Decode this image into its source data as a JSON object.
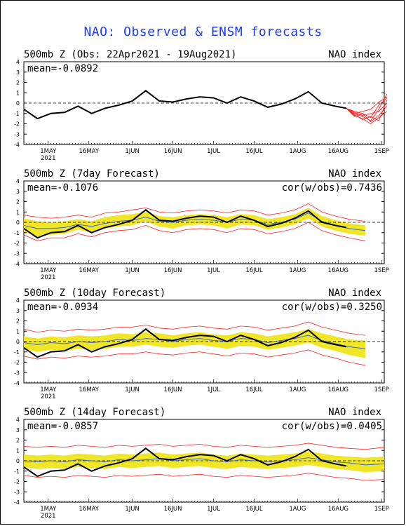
{
  "title": "NAO: Observed & ENSM forecasts",
  "colors": {
    "title": "#1e3cff",
    "observed": "#000000",
    "ensemble_mean": "#3c64c8",
    "spread": "#f0e628",
    "members": "#ff2020"
  },
  "chart_data": [
    {
      "type": "line",
      "header_left": "500mb Z (Obs: 22Apr2021 - 19Aug2021)",
      "header_right": "NAO index",
      "stat_left": "mean=-0.0892",
      "stat_right": "",
      "ylim": [
        -4,
        4
      ],
      "yticks": [
        4,
        3,
        2,
        1,
        0,
        -1,
        -2,
        -3,
        -4
      ],
      "x_ticks": [
        "1MAY",
        "16MAY",
        "1JUN",
        "16JUN",
        "1JUL",
        "16JUL",
        "1AUG",
        "16AUG",
        "1SEP"
      ],
      "year_label": "2021",
      "x_days": {
        "start": "2021-04-22",
        "end": "2021-09-02"
      },
      "series": [
        {
          "role": "observed",
          "x": [
            0,
            5,
            10,
            15,
            20,
            25,
            30,
            35,
            40,
            45,
            50,
            55,
            60,
            65,
            70,
            75,
            80,
            85,
            90,
            95,
            100,
            105,
            110,
            115,
            119
          ],
          "values": [
            -0.6,
            -1.5,
            -1.0,
            -0.9,
            -0.3,
            -1.0,
            -0.5,
            -0.2,
            0.2,
            1.2,
            0.2,
            0.1,
            0.4,
            0.6,
            0.5,
            0.0,
            0.6,
            0.2,
            -0.4,
            -0.1,
            0.4,
            1.1,
            0.0,
            -0.3,
            -0.5
          ]
        },
        {
          "role": "members",
          "x": [
            119,
            122,
            125,
            128,
            131,
            134
          ],
          "members": [
            [
              -0.5,
              -1.0,
              -1.3,
              -1.7,
              -0.6,
              0.9
            ],
            [
              -0.5,
              -0.9,
              -1.2,
              -1.0,
              -0.8,
              0.0
            ],
            [
              -0.5,
              -1.2,
              -1.5,
              -2.0,
              -1.4,
              -0.8
            ],
            [
              -0.5,
              -1.0,
              -0.8,
              -0.6,
              0.1,
              0.6
            ],
            [
              -0.5,
              -1.1,
              -1.6,
              -1.3,
              -1.7,
              0.3
            ],
            [
              -0.5,
              -0.8,
              -1.0,
              -1.4,
              -0.2,
              0.5
            ],
            [
              -0.5,
              -1.3,
              -1.0,
              -1.8,
              -1.2,
              -0.3
            ]
          ]
        }
      ]
    },
    {
      "type": "line",
      "header_left": "500mb Z (7day Forecast)",
      "header_right": "NAO index",
      "stat_left": "mean=-0.1076",
      "stat_right": "cor(w/obs)=0.7436",
      "ylim": [
        -4,
        4
      ],
      "yticks": [
        4,
        3,
        2,
        1,
        0,
        -1,
        -2,
        -3,
        -4
      ],
      "x_ticks": [
        "1MAY",
        "16MAY",
        "1JUN",
        "16JUN",
        "1JUL",
        "16JUL",
        "1AUG",
        "16AUG",
        "1SEP"
      ],
      "year_label": "2021",
      "x_days": {
        "start": "2021-04-22",
        "end": "2021-09-02"
      },
      "series": [
        {
          "role": "spread",
          "x": [
            0,
            5,
            10,
            15,
            20,
            25,
            30,
            35,
            40,
            45,
            50,
            55,
            60,
            65,
            70,
            75,
            80,
            85,
            90,
            95,
            100,
            105,
            110,
            115,
            120,
            126
          ],
          "upper": [
            0.4,
            0.1,
            0.0,
            0.1,
            0.3,
            0.1,
            0.5,
            0.7,
            0.8,
            1.0,
            0.6,
            0.5,
            0.7,
            0.8,
            0.7,
            0.5,
            0.8,
            0.7,
            0.3,
            0.5,
            0.8,
            1.4,
            0.6,
            0.2,
            -0.1,
            -0.3
          ],
          "lower": [
            -0.9,
            -1.4,
            -1.2,
            -1.1,
            -0.7,
            -1.0,
            -0.6,
            -0.4,
            -0.3,
            0.1,
            -0.4,
            -0.6,
            -0.3,
            -0.2,
            -0.3,
            -0.6,
            -0.2,
            -0.3,
            -0.7,
            -0.5,
            -0.2,
            0.4,
            -0.4,
            -0.8,
            -1.1,
            -1.3
          ]
        },
        {
          "role": "members_envelope",
          "x": [
            0,
            5,
            10,
            15,
            20,
            25,
            30,
            35,
            40,
            45,
            50,
            55,
            60,
            65,
            70,
            75,
            80,
            85,
            90,
            95,
            100,
            105,
            110,
            115,
            120,
            126
          ],
          "upper": [
            0.7,
            0.5,
            0.4,
            0.5,
            0.7,
            0.5,
            0.9,
            1.0,
            1.2,
            1.4,
            1.0,
            0.9,
            1.1,
            1.2,
            1.1,
            0.9,
            1.2,
            1.1,
            0.7,
            0.9,
            1.2,
            1.8,
            1.0,
            0.6,
            0.3,
            0.1
          ],
          "lower": [
            -1.2,
            -1.8,
            -1.5,
            -1.5,
            -1.1,
            -1.4,
            -1.0,
            -0.8,
            -0.7,
            -0.3,
            -0.8,
            -1.0,
            -0.7,
            -0.6,
            -0.7,
            -1.0,
            -0.6,
            -0.7,
            -1.1,
            -0.9,
            -0.6,
            0.0,
            -0.8,
            -1.2,
            -1.5,
            -1.8
          ]
        },
        {
          "role": "ensemble_mean",
          "x": [
            0,
            5,
            10,
            15,
            20,
            25,
            30,
            35,
            40,
            45,
            50,
            55,
            60,
            65,
            70,
            75,
            80,
            85,
            90,
            95,
            100,
            105,
            110,
            115,
            120,
            126
          ],
          "values": [
            -0.3,
            -0.6,
            -0.6,
            -0.5,
            -0.2,
            -0.4,
            -0.1,
            0.1,
            0.2,
            0.5,
            0.1,
            0.0,
            0.2,
            0.3,
            0.2,
            0.0,
            0.3,
            0.2,
            -0.2,
            0.0,
            0.3,
            0.9,
            0.1,
            -0.3,
            -0.6,
            -0.8
          ]
        },
        {
          "role": "observed",
          "x": [
            0,
            5,
            10,
            15,
            20,
            25,
            30,
            35,
            40,
            45,
            50,
            55,
            60,
            65,
            70,
            75,
            80,
            85,
            90,
            95,
            100,
            105,
            110,
            115,
            119
          ],
          "values": [
            -0.6,
            -1.5,
            -1.0,
            -0.9,
            -0.3,
            -1.0,
            -0.5,
            -0.2,
            0.2,
            1.2,
            0.2,
            0.1,
            0.4,
            0.6,
            0.5,
            0.0,
            0.6,
            0.2,
            -0.4,
            -0.1,
            0.4,
            1.1,
            0.0,
            -0.3,
            -0.5
          ]
        }
      ]
    },
    {
      "type": "line",
      "header_left": "500mb Z (10day Forecast)",
      "header_right": "NAO index",
      "stat_left": "mean=-0.0934",
      "stat_right": "cor(w/obs)=0.3250",
      "ylim": [
        -4,
        4
      ],
      "yticks": [
        4,
        3,
        2,
        1,
        0,
        -1,
        -2,
        -3,
        -4
      ],
      "x_ticks": [
        "1MAY",
        "16MAY",
        "1JUN",
        "16JUN",
        "1JUL",
        "16JUL",
        "1AUG",
        "16AUG",
        "1SEP"
      ],
      "year_label": "2021",
      "x_days": {
        "start": "2021-04-22",
        "end": "2021-09-02"
      },
      "series": [
        {
          "role": "spread",
          "x": [
            0,
            5,
            10,
            15,
            20,
            25,
            30,
            35,
            40,
            45,
            50,
            55,
            60,
            65,
            70,
            75,
            80,
            85,
            90,
            95,
            100,
            105,
            110,
            115,
            120,
            126
          ],
          "upper": [
            0.5,
            0.3,
            0.5,
            0.4,
            0.6,
            0.5,
            0.6,
            0.8,
            0.7,
            0.9,
            0.8,
            0.6,
            0.8,
            0.9,
            0.7,
            0.6,
            0.9,
            0.8,
            0.5,
            0.7,
            0.9,
            1.2,
            0.8,
            0.5,
            0.2,
            0.1
          ],
          "lower": [
            -0.7,
            -1.0,
            -0.8,
            -0.9,
            -0.7,
            -0.8,
            -0.7,
            -0.5,
            -0.5,
            -0.3,
            -0.5,
            -0.6,
            -0.4,
            -0.3,
            -0.5,
            -0.7,
            -0.4,
            -0.5,
            -0.8,
            -0.6,
            -0.4,
            -0.1,
            -0.6,
            -0.9,
            -1.3,
            -1.6
          ]
        },
        {
          "role": "members_envelope",
          "x": [
            0,
            5,
            10,
            15,
            20,
            25,
            30,
            35,
            40,
            45,
            50,
            55,
            60,
            65,
            70,
            75,
            80,
            85,
            90,
            95,
            100,
            105,
            110,
            115,
            120,
            126
          ],
          "upper": [
            1.2,
            0.9,
            1.1,
            1.0,
            1.2,
            1.1,
            1.2,
            1.4,
            1.4,
            1.6,
            1.3,
            1.2,
            1.4,
            1.5,
            1.3,
            1.2,
            1.5,
            1.4,
            1.1,
            1.3,
            1.5,
            1.9,
            1.4,
            1.1,
            0.8,
            0.6
          ],
          "lower": [
            -1.4,
            -1.7,
            -1.5,
            -1.6,
            -1.4,
            -1.5,
            -1.4,
            -1.2,
            -1.2,
            -1.0,
            -1.2,
            -1.3,
            -1.1,
            -1.0,
            -1.2,
            -1.4,
            -1.1,
            -1.2,
            -1.5,
            -1.3,
            -1.1,
            -0.8,
            -1.3,
            -1.6,
            -2.0,
            -2.3
          ]
        },
        {
          "role": "ensemble_mean",
          "x": [
            0,
            5,
            10,
            15,
            20,
            25,
            30,
            35,
            40,
            45,
            50,
            55,
            60,
            65,
            70,
            75,
            80,
            85,
            90,
            95,
            100,
            105,
            110,
            115,
            120,
            126
          ],
          "values": [
            -0.1,
            -0.3,
            -0.1,
            -0.2,
            0.0,
            -0.1,
            0.0,
            0.2,
            0.1,
            0.3,
            0.2,
            0.0,
            0.2,
            0.3,
            0.1,
            0.0,
            0.3,
            0.2,
            -0.1,
            0.1,
            0.3,
            0.6,
            0.1,
            -0.2,
            -0.5,
            -0.7
          ]
        },
        {
          "role": "observed",
          "x": [
            0,
            5,
            10,
            15,
            20,
            25,
            30,
            35,
            40,
            45,
            50,
            55,
            60,
            65,
            70,
            75,
            80,
            85,
            90,
            95,
            100,
            105,
            110,
            115,
            119
          ],
          "values": [
            -0.6,
            -1.5,
            -1.0,
            -0.9,
            -0.3,
            -1.0,
            -0.5,
            -0.2,
            0.2,
            1.2,
            0.2,
            0.1,
            0.4,
            0.6,
            0.5,
            0.0,
            0.6,
            0.2,
            -0.4,
            -0.1,
            0.4,
            1.1,
            0.0,
            -0.3,
            -0.5
          ]
        }
      ]
    },
    {
      "type": "line",
      "header_left": "500mb Z (14day Forecast)",
      "header_right": "NAO index",
      "stat_left": "mean=-0.0857",
      "stat_right": "cor(w/obs)=0.0405",
      "ylim": [
        -4,
        4
      ],
      "yticks": [
        4,
        3,
        2,
        1,
        0,
        -1,
        -2,
        -3,
        -4
      ],
      "x_ticks": [
        "1MAY",
        "16MAY",
        "1JUN",
        "16JUN",
        "1JUL",
        "16JUL",
        "1AUG",
        "16AUG",
        "1SEP"
      ],
      "year_label": "2021",
      "x_days": {
        "start": "2021-04-22",
        "end": "2021-09-02"
      },
      "series": [
        {
          "role": "spread",
          "x": [
            0,
            5,
            10,
            15,
            20,
            25,
            30,
            35,
            40,
            45,
            50,
            55,
            60,
            65,
            70,
            75,
            80,
            85,
            90,
            95,
            100,
            105,
            110,
            115,
            120,
            126,
            133
          ],
          "upper": [
            0.6,
            0.5,
            0.6,
            0.5,
            0.7,
            0.6,
            0.5,
            0.7,
            0.6,
            0.7,
            0.8,
            0.6,
            0.7,
            0.8,
            0.6,
            0.5,
            0.7,
            0.6,
            0.5,
            0.6,
            0.7,
            0.9,
            0.7,
            0.5,
            0.4,
            0.3,
            0.4
          ],
          "lower": [
            -0.6,
            -0.8,
            -0.7,
            -0.8,
            -0.6,
            -0.7,
            -0.8,
            -0.6,
            -0.7,
            -0.6,
            -0.5,
            -0.7,
            -0.6,
            -0.5,
            -0.7,
            -0.8,
            -0.6,
            -0.7,
            -0.8,
            -0.7,
            -0.6,
            -0.4,
            -0.6,
            -0.8,
            -0.9,
            -1.1,
            -1.0
          ]
        },
        {
          "role": "members_envelope",
          "x": [
            0,
            5,
            10,
            15,
            20,
            25,
            30,
            35,
            40,
            45,
            50,
            55,
            60,
            65,
            70,
            75,
            80,
            85,
            90,
            95,
            100,
            105,
            110,
            115,
            120,
            126,
            133
          ],
          "upper": [
            1.4,
            1.3,
            1.4,
            1.3,
            1.5,
            1.4,
            1.3,
            1.5,
            1.4,
            1.5,
            1.6,
            1.4,
            1.5,
            1.6,
            1.4,
            1.3,
            1.5,
            1.4,
            1.3,
            1.4,
            1.5,
            1.7,
            1.5,
            1.3,
            1.2,
            1.1,
            1.3
          ],
          "lower": [
            -1.4,
            -1.6,
            -1.5,
            -1.6,
            -1.4,
            -1.5,
            -1.6,
            -1.4,
            -1.5,
            -1.4,
            -1.3,
            -1.5,
            -1.4,
            -1.3,
            -1.5,
            -1.6,
            -1.4,
            -1.5,
            -1.6,
            -1.5,
            -1.4,
            -1.2,
            -1.4,
            -1.6,
            -1.7,
            -1.9,
            -1.8
          ]
        },
        {
          "role": "ensemble_mean",
          "x": [
            0,
            5,
            10,
            15,
            20,
            25,
            30,
            35,
            40,
            45,
            50,
            55,
            60,
            65,
            70,
            75,
            80,
            85,
            90,
            95,
            100,
            105,
            110,
            115,
            120,
            126,
            133
          ],
          "values": [
            0.0,
            -0.1,
            0.0,
            -0.1,
            0.1,
            0.0,
            -0.1,
            0.1,
            0.0,
            0.1,
            0.2,
            0.0,
            0.1,
            0.2,
            0.0,
            -0.1,
            0.1,
            0.0,
            -0.1,
            0.0,
            0.1,
            0.3,
            0.1,
            -0.1,
            -0.2,
            -0.4,
            -0.3
          ]
        },
        {
          "role": "observed",
          "x": [
            0,
            5,
            10,
            15,
            20,
            25,
            30,
            35,
            40,
            45,
            50,
            55,
            60,
            65,
            70,
            75,
            80,
            85,
            90,
            95,
            100,
            105,
            110,
            115,
            119
          ],
          "values": [
            -0.6,
            -1.5,
            -1.0,
            -0.9,
            -0.3,
            -1.0,
            -0.5,
            -0.2,
            0.2,
            1.2,
            0.2,
            0.1,
            0.4,
            0.6,
            0.5,
            0.0,
            0.6,
            0.2,
            -0.4,
            -0.1,
            0.4,
            1.1,
            0.0,
            -0.3,
            -0.5
          ]
        }
      ]
    }
  ]
}
